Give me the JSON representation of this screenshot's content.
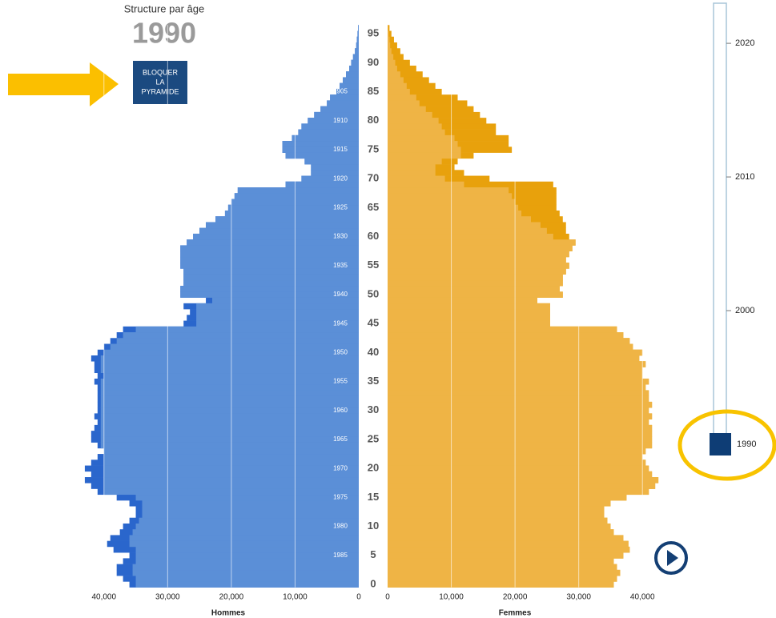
{
  "title": "Structure par âge",
  "year": 1990,
  "button": [
    "BLOQUER",
    "LA",
    "PYRAMIDE"
  ],
  "chart_data": {
    "type": "pyramid",
    "xlabel_left": "Hommes",
    "xlabel_right": "Femmes",
    "xlim": [
      0,
      45000
    ],
    "xticks": [
      {
        "value": 0,
        "label": "0"
      },
      {
        "value": 10000,
        "label": "10,000"
      },
      {
        "value": 20000,
        "label": "20,000"
      },
      {
        "value": 30000,
        "label": "30,000"
      },
      {
        "value": 40000,
        "label": "40,000"
      }
    ],
    "ylim": [
      -0.5,
      96.5
    ],
    "yticks": [
      0,
      5,
      10,
      15,
      20,
      25,
      30,
      35,
      40,
      45,
      50,
      55,
      60,
      65,
      70,
      75,
      80,
      85,
      90,
      95
    ],
    "grid": true,
    "birth_years": [
      1905,
      1910,
      1915,
      1920,
      1925,
      1930,
      1935,
      1940,
      1945,
      1950,
      1955,
      1960,
      1965,
      1970,
      1975,
      1980,
      1985
    ],
    "series": [
      {
        "side": "left",
        "color": "#2a66cc",
        "values": [
          36000,
          37000,
          38000,
          38000,
          37000,
          36000,
          38500,
          39500,
          39000,
          37500,
          37000,
          36000,
          35000,
          35000,
          36000,
          38000,
          41000,
          42000,
          43000,
          42000,
          43000,
          42000,
          41000,
          40000,
          41000,
          42000,
          42000,
          41500,
          41000,
          41500,
          41000,
          41000,
          41000,
          41000,
          41000,
          41500,
          41000,
          41500,
          41500,
          42000,
          41000,
          40000,
          39000,
          38000,
          37000,
          27500,
          27000,
          26500,
          27500,
          24000,
          28000,
          28000,
          27500,
          27500,
          27500,
          28000,
          28000,
          28000,
          28000,
          27000,
          26000,
          25000,
          24000,
          22500,
          21000,
          20500,
          20000,
          19500,
          19000,
          11500,
          9000,
          7500,
          7500,
          8500,
          11500,
          12000,
          12000,
          10500,
          9500,
          9000,
          8000,
          7000,
          6000,
          5000,
          4500,
          3500,
          3000,
          2500,
          2000,
          1500,
          1200,
          900,
          600,
          400,
          300,
          200,
          100
        ]
      },
      {
        "side": "left",
        "color": "#5b8fd7",
        "values": [
          35000,
          35000,
          35500,
          35500,
          35000,
          35000,
          35000,
          36000,
          36000,
          35500,
          35000,
          34500,
          34000,
          34000,
          34000,
          35000,
          40000,
          40000,
          40000,
          40000,
          40000,
          40000,
          40000,
          40000,
          40500,
          40500,
          40500,
          40500,
          40500,
          40500,
          40500,
          40500,
          40500,
          40500,
          40500,
          40500,
          40000,
          40500,
          40500,
          40500,
          40000,
          39000,
          38000,
          37000,
          35000,
          25500,
          25500,
          25500,
          25500,
          23000,
          28000,
          28000,
          27500,
          27500,
          27500,
          28000,
          28000,
          28000,
          28000,
          27000,
          26000,
          25000,
          24000,
          22500,
          21000,
          20500,
          20000,
          19500,
          19000,
          11500,
          9000,
          7500,
          7500,
          8500,
          11500,
          12000,
          12000,
          10500,
          9500,
          9000,
          8000,
          7000,
          6000,
          5000,
          4500,
          3500,
          3000,
          2500,
          2000,
          1500,
          1200,
          900,
          600,
          400,
          300,
          200,
          100
        ]
      },
      {
        "side": "right",
        "color": "#e8a10c",
        "values": [
          35500,
          36000,
          36500,
          36000,
          35500,
          37000,
          38000,
          37800,
          37000,
          35500,
          35000,
          34500,
          34000,
          34000,
          35000,
          37500,
          41000,
          42000,
          42500,
          41500,
          41000,
          40500,
          40000,
          40500,
          41500,
          41500,
          41500,
          41500,
          41000,
          41500,
          41000,
          41500,
          41000,
          41000,
          40500,
          41000,
          40000,
          40000,
          40500,
          39500,
          40000,
          38500,
          38000,
          37000,
          36000,
          25500,
          25500,
          25500,
          25500,
          23500,
          27500,
          27000,
          27500,
          27500,
          28000,
          28500,
          28000,
          28500,
          29000,
          29500,
          28500,
          28000,
          28000,
          27500,
          27000,
          26500,
          26500,
          26500,
          26500,
          26000,
          16000,
          12000,
          10500,
          11000,
          13500,
          19500,
          19000,
          19000,
          17000,
          17000,
          15500,
          14500,
          13500,
          12500,
          11000,
          8500,
          7500,
          6500,
          5500,
          4500,
          3500,
          2500,
          2000,
          1500,
          1000,
          600,
          300
        ]
      },
      {
        "side": "right",
        "color": "#efb445",
        "values": [
          35500,
          36000,
          36500,
          36000,
          35500,
          37000,
          38000,
          37800,
          37000,
          35500,
          35000,
          34500,
          34000,
          34000,
          35000,
          37500,
          41000,
          42000,
          42500,
          41500,
          41000,
          40500,
          40000,
          40500,
          41500,
          41500,
          41500,
          41500,
          41000,
          41500,
          41000,
          41500,
          41000,
          41000,
          40500,
          41000,
          40000,
          40000,
          40500,
          39500,
          40000,
          38500,
          38000,
          37000,
          36000,
          25500,
          25500,
          25500,
          25500,
          23500,
          27500,
          27000,
          27500,
          27500,
          28000,
          28500,
          28000,
          28500,
          29000,
          29500,
          26000,
          25000,
          24000,
          22500,
          21000,
          20500,
          20000,
          19500,
          19000,
          12000,
          9000,
          7500,
          7500,
          8500,
          11500,
          11500,
          11000,
          10500,
          9000,
          8500,
          8000,
          7000,
          6000,
          5000,
          4500,
          3500,
          3000,
          2500,
          2000,
          1500,
          1200,
          900,
          600,
          400,
          300,
          200,
          100
        ]
      }
    ]
  },
  "slider": {
    "lim": [
      1990,
      2023
    ],
    "ticks": [
      2000,
      2010,
      2020
    ],
    "value": 1990
  }
}
